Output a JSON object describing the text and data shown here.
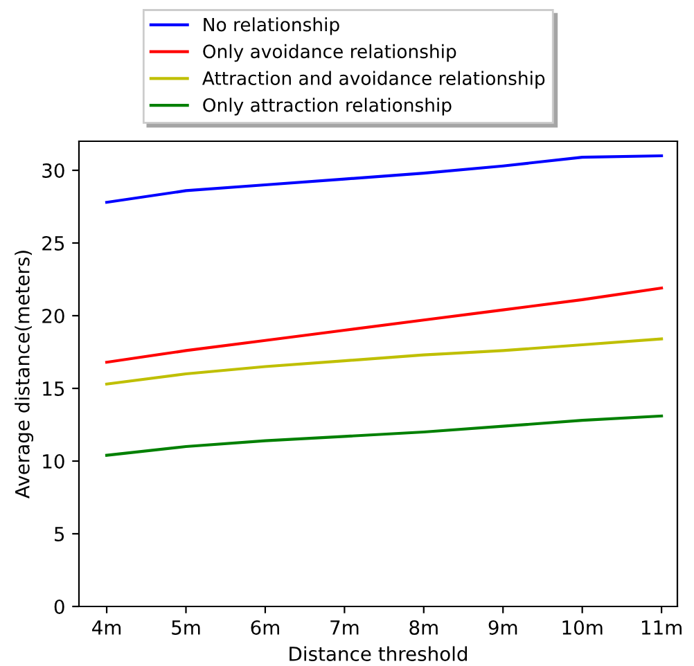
{
  "chart_data": {
    "type": "line",
    "xlabel": "Distance threshold",
    "ylabel": "Average distance(meters)",
    "categories": [
      "4m",
      "5m",
      "6m",
      "7m",
      "8m",
      "9m",
      "10m",
      "11m"
    ],
    "ylim": [
      0,
      32
    ],
    "yticks": [
      0,
      5,
      10,
      15,
      20,
      25,
      30
    ],
    "legend": "top",
    "grid": false,
    "series": [
      {
        "name": "No relationship",
        "color": "#0000ff",
        "values": [
          27.8,
          28.6,
          29.0,
          29.4,
          29.8,
          30.3,
          30.9,
          31.0
        ]
      },
      {
        "name": "Only avoidance relationship",
        "color": "#ff0000",
        "values": [
          16.8,
          17.6,
          18.3,
          19.0,
          19.7,
          20.4,
          21.1,
          21.9
        ]
      },
      {
        "name": "Attraction and avoidance relationship",
        "color": "#bfbf00",
        "values": [
          15.3,
          16.0,
          16.5,
          16.9,
          17.3,
          17.6,
          18.0,
          18.4
        ]
      },
      {
        "name": "Only attraction relationship",
        "color": "#008000",
        "values": [
          10.4,
          11.0,
          11.4,
          11.7,
          12.0,
          12.4,
          12.8,
          13.1
        ]
      }
    ]
  }
}
